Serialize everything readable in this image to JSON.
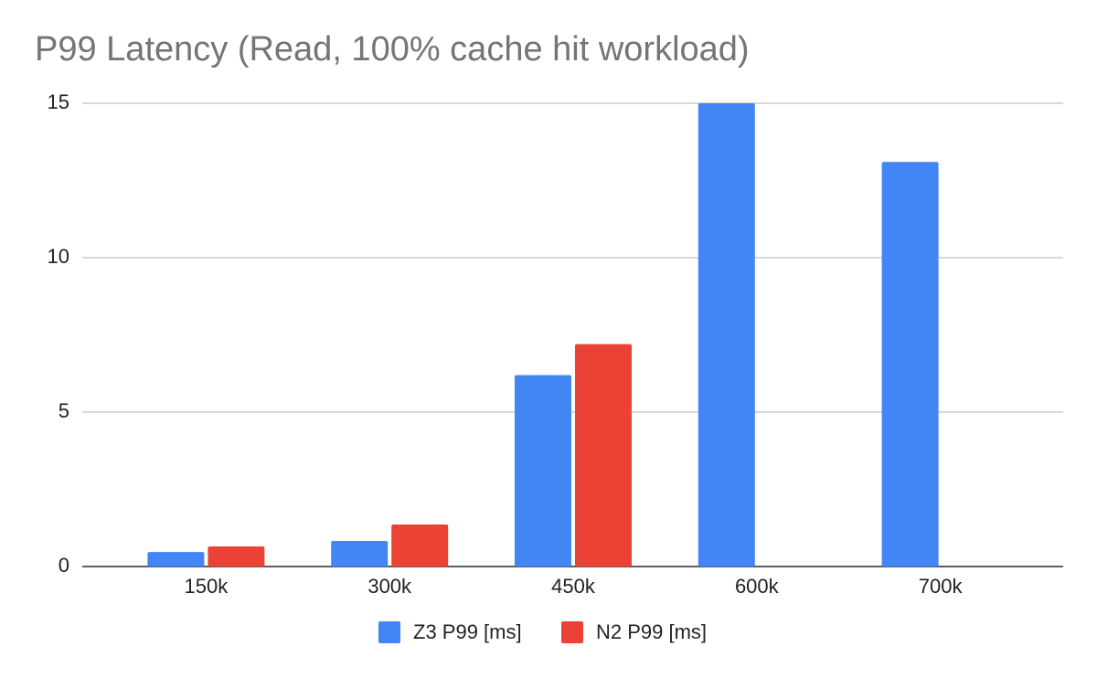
{
  "chart_data": {
    "type": "bar",
    "title": "P99 Latency (Read, 100% cache hit workload)",
    "categories": [
      "150k",
      "300k",
      "450k",
      "600k",
      "700k"
    ],
    "series": [
      {
        "name": "Z3 P99 [ms]",
        "color": "#4285f4",
        "values": [
          0.47,
          0.83,
          6.2,
          15.0,
          13.1
        ]
      },
      {
        "name": "N2 P99 [ms]",
        "color": "#ea4335",
        "values": [
          0.65,
          1.36,
          7.2,
          null,
          null
        ]
      }
    ],
    "ylim": [
      0,
      15
    ],
    "yticks": [
      0,
      5,
      10,
      15
    ],
    "grid": true,
    "legend": "bottom"
  }
}
